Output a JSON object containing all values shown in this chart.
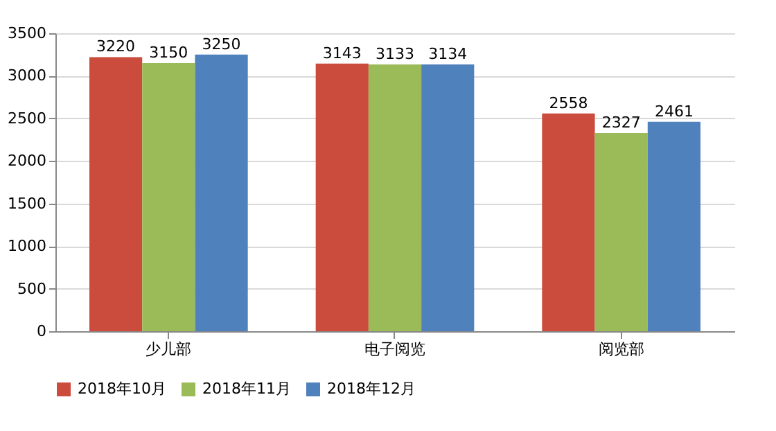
{
  "chart_data": {
    "type": "bar",
    "categories": [
      "少儿部",
      "电子阅览",
      "阅览部"
    ],
    "series": [
      {
        "name": "2018年10月",
        "color": "#cb4b3c",
        "values": [
          3220,
          3143,
          2558
        ]
      },
      {
        "name": "2018年11月",
        "color": "#9bbb59",
        "values": [
          3150,
          3133,
          2327
        ]
      },
      {
        "name": "2018年12月",
        "color": "#4f81bd",
        "values": [
          3250,
          3134,
          2461
        ]
      }
    ],
    "ylim": [
      0,
      3500
    ],
    "yticks": [
      0,
      500,
      1000,
      1500,
      2000,
      2500,
      3000,
      3500
    ],
    "grid": "y",
    "legend": "bottom",
    "data_labels": true
  }
}
